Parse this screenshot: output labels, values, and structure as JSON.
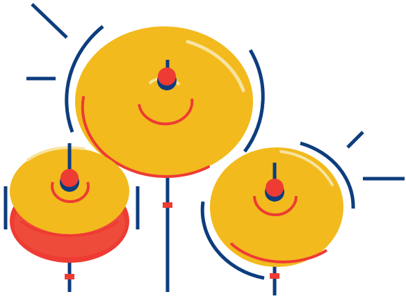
{
  "illustration": {
    "subject": "cymbals",
    "colors": {
      "cymbal_yellow": "#F2BA1D",
      "highlight_cream": "#F8E3A0",
      "accent_red": "#EE3B33",
      "dark_navy": "#0D3D7E",
      "background": "#FFFFFF"
    },
    "icons": [
      "cymbal-large",
      "cymbal-hihat",
      "cymbal-right",
      "motion-lines"
    ]
  }
}
